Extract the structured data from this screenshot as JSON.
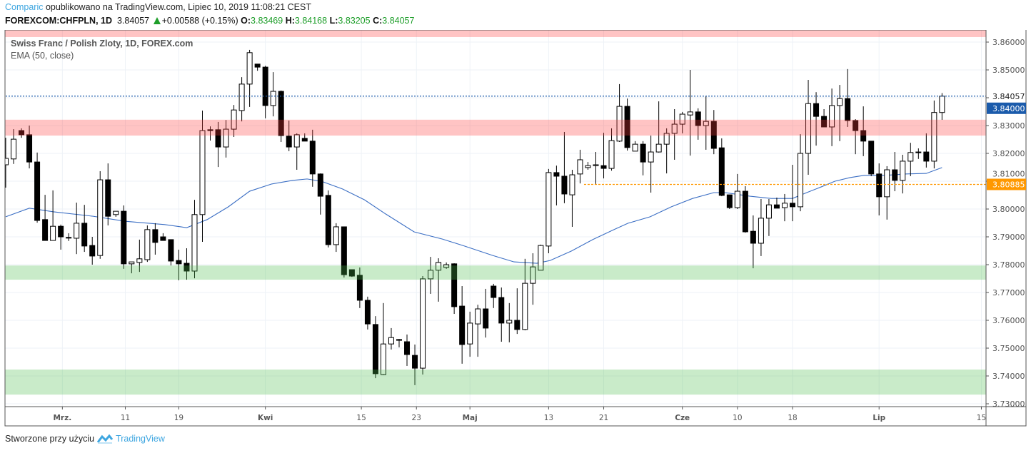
{
  "header": {
    "author": "Comparic",
    "published": "opublikowano na TradingView.com, Lipiec 10, 2019 11:08:21 CEST",
    "symbol": "FOREXCOM:CHFPLN, 1D",
    "last": "3.84057",
    "change": "+0.00588 (+0.15%)",
    "o_label": "O:",
    "o": "3.83469",
    "h_label": "H:",
    "h": "3.84168",
    "l_label": "L:",
    "l": "3.83205",
    "c_label": "C:",
    "c": "3.84057"
  },
  "legend": {
    "title": "Swiss Franc / Polish Zloty, 1D, FOREX.com",
    "indicator": "EMA (50, close)"
  },
  "footer": {
    "text": "Stworzone przy użyciu",
    "brand": "TradingView"
  },
  "colors": {
    "ema": "#3c6fc4",
    "resistance": "#ff8a8a",
    "support": "#8fd68f",
    "last_line": "#1b5bab",
    "orange_line": "#ff9800",
    "up_text": "#1e9e2a"
  },
  "chart_data": {
    "type": "candlestick",
    "title": "Swiss Franc / Polish Zloty, 1D, FOREX.com",
    "ylim": [
      3.73,
      3.8645
    ],
    "y_ticks": [
      "3.86000",
      "3.85000",
      "3.84000",
      "3.83000",
      "3.82000",
      "3.81000",
      "3.80000",
      "3.79000",
      "3.78000",
      "3.77000",
      "3.76000",
      "3.75000",
      "3.74000",
      "3.73000"
    ],
    "x_ticks": [
      {
        "bar": 7.2,
        "label": "Mrz.",
        "bold": true
      },
      {
        "bar": 15.2,
        "label": "11"
      },
      {
        "bar": 22,
        "label": "19"
      },
      {
        "bar": 33,
        "label": "Kwi",
        "bold": true
      },
      {
        "bar": 45.2,
        "label": "15"
      },
      {
        "bar": 52.2,
        "label": "23"
      },
      {
        "bar": 59,
        "label": "Maj",
        "bold": true
      },
      {
        "bar": 69,
        "label": "13"
      },
      {
        "bar": 76,
        "label": "21"
      },
      {
        "bar": 86,
        "label": "Cze",
        "bold": true
      },
      {
        "bar": 93,
        "label": "10"
      },
      {
        "bar": 100,
        "label": "18"
      },
      {
        "bar": 111,
        "label": "Lip",
        "bold": true
      },
      {
        "bar": 124,
        "label": "15"
      }
    ],
    "ohlc": [
      [
        3.8159,
        3.8256,
        3.8077,
        3.8182
      ],
      [
        3.818,
        3.8287,
        3.8162,
        3.8251
      ],
      [
        3.8282,
        3.829,
        3.8256,
        3.8267
      ],
      [
        3.8267,
        3.83,
        3.8146,
        3.8169
      ],
      [
        3.8169,
        3.8203,
        3.7951,
        3.7959
      ],
      [
        3.7962,
        3.8051,
        3.7887,
        3.7887
      ],
      [
        3.7887,
        3.8067,
        3.7887,
        3.7938
      ],
      [
        3.7938,
        3.7944,
        3.7854,
        3.79
      ],
      [
        3.7897,
        3.7913,
        3.7885,
        3.7898
      ],
      [
        3.7895,
        3.8023,
        3.7838,
        3.7949
      ],
      [
        3.7949,
        3.8015,
        3.7846,
        3.7867
      ],
      [
        3.7869,
        3.79,
        3.78,
        3.7831
      ],
      [
        3.7833,
        3.8136,
        3.7821,
        3.8105
      ],
      [
        3.8105,
        3.8164,
        3.7941,
        3.7974
      ],
      [
        3.798,
        3.7992,
        3.7972,
        3.7992
      ],
      [
        3.7992,
        3.8013,
        3.7785,
        3.7803
      ],
      [
        3.7803,
        3.781,
        3.7769,
        3.781
      ],
      [
        3.7808,
        3.789,
        3.7774,
        3.7821
      ],
      [
        3.7818,
        3.7941,
        3.781,
        3.7926
      ],
      [
        3.7926,
        3.7949,
        3.7836,
        3.788
      ],
      [
        3.79,
        3.7913,
        3.7887,
        3.7887
      ],
      [
        3.789,
        3.789,
        3.7797,
        3.7813
      ],
      [
        3.7815,
        3.7854,
        3.7744,
        3.7803
      ],
      [
        3.7805,
        3.7859,
        3.7746,
        3.7777
      ],
      [
        3.7777,
        3.8033,
        3.7751,
        3.798
      ],
      [
        3.798,
        3.8354,
        3.7882,
        3.8282
      ],
      [
        3.8285,
        3.8297,
        3.8246,
        3.8282
      ],
      [
        3.8285,
        3.8313,
        3.8151,
        3.8223
      ],
      [
        3.8223,
        3.832,
        3.8185,
        3.8287
      ],
      [
        3.8287,
        3.8374,
        3.8259,
        3.8356
      ],
      [
        3.8354,
        3.8474,
        3.8315,
        3.8449
      ],
      [
        3.8449,
        3.8572,
        3.8367,
        3.8562
      ],
      [
        3.8521,
        3.8521,
        3.8497,
        3.851
      ],
      [
        3.851,
        3.8515,
        3.8326,
        3.8372
      ],
      [
        3.8372,
        3.8492,
        3.8333,
        3.8423
      ],
      [
        3.8423,
        3.8426,
        3.8241,
        3.8264
      ],
      [
        3.8262,
        3.8318,
        3.8208,
        3.8223
      ],
      [
        3.8223,
        3.8272,
        3.8141,
        3.8267
      ],
      [
        3.8254,
        3.8272,
        3.8244,
        3.8244
      ],
      [
        3.8244,
        3.8285,
        3.808,
        3.8126
      ],
      [
        3.8126,
        3.8128,
        3.798,
        3.8046
      ],
      [
        3.8049,
        3.8067,
        3.7862,
        3.7872
      ],
      [
        3.7872,
        3.7949,
        3.7846,
        3.7936
      ],
      [
        3.7936,
        3.7936,
        3.7754,
        3.7764
      ],
      [
        3.7782,
        3.7782,
        3.7756,
        3.7759
      ],
      [
        3.7762,
        3.779,
        3.7644,
        3.7672
      ],
      [
        3.7672,
        3.7685,
        3.7567,
        3.7587
      ],
      [
        3.7585,
        3.7615,
        3.7392,
        3.7408
      ],
      [
        3.7405,
        3.7662,
        3.7403,
        3.7515
      ],
      [
        3.7515,
        3.7572,
        3.7495,
        3.7538
      ],
      [
        3.7531,
        3.7533,
        3.7503,
        3.7528
      ],
      [
        3.7523,
        3.7549,
        3.7436,
        3.7477
      ],
      [
        3.7474,
        3.7513,
        3.7367,
        3.7428
      ],
      [
        3.7428,
        3.7759,
        3.7405,
        3.7749
      ],
      [
        3.7749,
        3.7828,
        3.7695,
        3.778
      ],
      [
        3.778,
        3.7823,
        3.7667,
        3.7808
      ],
      [
        3.779,
        3.7808,
        3.7785,
        3.78
      ],
      [
        3.7803,
        3.7805,
        3.7623,
        3.7649
      ],
      [
        3.7651,
        3.7723,
        3.7444,
        3.7513
      ],
      [
        3.7515,
        3.7631,
        3.7469,
        3.759
      ],
      [
        3.7587,
        3.7656,
        3.7469,
        3.7641
      ],
      [
        3.7641,
        3.7713,
        3.7538,
        3.7572
      ],
      [
        3.7723,
        3.7731,
        3.7644,
        3.7682
      ],
      [
        3.7682,
        3.7718,
        3.7523,
        3.759
      ],
      [
        3.759,
        3.7662,
        3.7521,
        3.76
      ],
      [
        3.76,
        3.7715,
        3.7551,
        3.7567
      ],
      [
        3.7567,
        3.7821,
        3.7564,
        3.7733
      ],
      [
        3.7733,
        3.7841,
        3.7656,
        3.7792
      ],
      [
        3.778,
        3.7872,
        3.778,
        3.7869
      ],
      [
        3.7867,
        3.8144,
        3.7841,
        3.8131
      ],
      [
        3.8131,
        3.8156,
        3.8013,
        3.8118
      ],
      [
        3.8118,
        3.8277,
        3.8021,
        3.8054
      ],
      [
        3.8051,
        3.8141,
        3.7936,
        3.8123
      ],
      [
        3.8126,
        3.8213,
        3.8092,
        3.8177
      ],
      [
        3.8149,
        3.8169,
        3.8141,
        3.8156
      ],
      [
        3.8156,
        3.8205,
        3.809,
        3.8159
      ],
      [
        3.8156,
        3.8274,
        3.811,
        3.8146
      ],
      [
        3.8146,
        3.829,
        3.8138,
        3.8246
      ],
      [
        3.8244,
        3.8449,
        3.8241,
        3.8369
      ],
      [
        3.8369,
        3.8397,
        3.821,
        3.8221
      ],
      [
        3.8208,
        3.8244,
        3.8208,
        3.8233
      ],
      [
        3.8233,
        3.8244,
        3.8121,
        3.8169
      ],
      [
        3.8169,
        3.8264,
        3.8059,
        3.8205
      ],
      [
        3.8205,
        3.8387,
        3.8203,
        3.8233
      ],
      [
        3.8233,
        3.829,
        3.8128,
        3.8272
      ],
      [
        3.8272,
        3.8359,
        3.8177,
        3.8305
      ],
      [
        3.8305,
        3.8349,
        3.8272,
        3.8341
      ],
      [
        3.8338,
        3.85,
        3.8192,
        3.8349
      ],
      [
        3.8349,
        3.8362,
        3.8249,
        3.83
      ],
      [
        3.83,
        3.8405,
        3.8213,
        3.8315
      ],
      [
        3.8315,
        3.8356,
        3.8197,
        3.8218
      ],
      [
        3.822,
        3.8254,
        3.8046,
        3.8049
      ],
      [
        3.8051,
        3.8051,
        3.8,
        3.8005
      ],
      [
        3.8005,
        3.8126,
        3.8,
        3.8064
      ],
      [
        3.8064,
        3.8082,
        3.7915,
        3.7918
      ],
      [
        3.792,
        3.7977,
        3.7787,
        3.7877
      ],
      [
        3.7877,
        3.8036,
        3.7831,
        3.7967
      ],
      [
        3.7967,
        3.8036,
        3.7903,
        3.8015
      ],
      [
        3.8015,
        3.8041,
        3.8003,
        3.8003
      ],
      [
        3.8005,
        3.8054,
        3.7956,
        3.8021
      ],
      [
        3.8021,
        3.8159,
        3.7956,
        3.8008
      ],
      [
        3.8008,
        3.8269,
        3.7992,
        3.82
      ],
      [
        3.82,
        3.8464,
        3.8123,
        3.8379
      ],
      [
        3.8379,
        3.842,
        3.8228,
        3.8333
      ],
      [
        3.8333,
        3.8359,
        3.8295,
        3.8295
      ],
      [
        3.8295,
        3.8433,
        3.8226,
        3.8372
      ],
      [
        3.8372,
        3.8446,
        3.8244,
        3.8397
      ],
      [
        3.8397,
        3.8503,
        3.8295,
        3.8318
      ],
      [
        3.8318,
        3.8323,
        3.8197,
        3.8282
      ],
      [
        3.8282,
        3.8369,
        3.819,
        3.8244
      ],
      [
        3.8244,
        3.8244,
        3.8118,
        3.8126
      ],
      [
        3.8126,
        3.8164,
        3.7977,
        3.8044
      ],
      [
        3.8044,
        3.8154,
        3.7962,
        3.8141
      ],
      [
        3.8141,
        3.8205,
        3.8064,
        3.8103
      ],
      [
        3.8103,
        3.8195,
        3.8056,
        3.8172
      ],
      [
        3.8172,
        3.8238,
        3.8118,
        3.8203
      ],
      [
        3.8205,
        3.8218,
        3.818,
        3.8204
      ],
      [
        3.8205,
        3.8272,
        3.8149,
        3.8172
      ],
      [
        3.8172,
        3.839,
        3.8146,
        3.8347
      ],
      [
        3.83469,
        3.84168,
        3.83205,
        3.84057
      ]
    ],
    "ema50": [
      [
        0,
        3.7972
      ],
      [
        3,
        3.8003
      ],
      [
        6.1,
        3.799
      ],
      [
        11.1,
        3.7974
      ],
      [
        15.2,
        3.7956
      ],
      [
        20.2,
        3.7944
      ],
      [
        23,
        3.7933
      ],
      [
        25.6,
        3.7962
      ],
      [
        28.3,
        3.8008
      ],
      [
        31,
        3.8064
      ],
      [
        33.8,
        3.809
      ],
      [
        36.5,
        3.8103
      ],
      [
        38.3,
        3.8108
      ],
      [
        40.1,
        3.81
      ],
      [
        42.8,
        3.8072
      ],
      [
        45.6,
        3.8033
      ],
      [
        48.3,
        3.7982
      ],
      [
        51.9,
        3.7918
      ],
      [
        55.5,
        3.7892
      ],
      [
        58.3,
        3.7867
      ],
      [
        61.9,
        3.7833
      ],
      [
        64.6,
        3.781
      ],
      [
        67.5,
        3.7805
      ],
      [
        69.2,
        3.7815
      ],
      [
        71.9,
        3.7849
      ],
      [
        74.6,
        3.789
      ],
      [
        77.3,
        3.7926
      ],
      [
        79.1,
        3.7949
      ],
      [
        81.9,
        3.7972
      ],
      [
        84.6,
        3.8008
      ],
      [
        87.3,
        3.8038
      ],
      [
        90,
        3.8059
      ],
      [
        91.4,
        3.8059
      ],
      [
        94.6,
        3.8046
      ],
      [
        97.3,
        3.8038
      ],
      [
        100,
        3.8038
      ],
      [
        101.8,
        3.8059
      ],
      [
        103.6,
        3.8079
      ],
      [
        105.4,
        3.81
      ],
      [
        107.3,
        3.8113
      ],
      [
        109.1,
        3.8121
      ],
      [
        111.8,
        3.8121
      ],
      [
        114.5,
        3.8126
      ],
      [
        117,
        3.8128
      ],
      [
        119,
        3.8149
      ]
    ],
    "zones": [
      {
        "type": "resistance",
        "from": 3.8618,
        "to": 3.865
      },
      {
        "type": "resistance",
        "from": 3.8264,
        "to": 3.8321
      },
      {
        "type": "support",
        "from": 3.7746,
        "to": 3.7797
      },
      {
        "type": "support",
        "from": 3.7333,
        "to": 3.7423
      }
    ],
    "lines": [
      {
        "name": "last-price-line",
        "value": 3.84057,
        "label": "3.84057",
        "from_bar": 0,
        "style": "blue-dotted"
      },
      {
        "name": "orange-level-line",
        "value": 3.80885,
        "label": "3.80885",
        "from_bar": 73.5,
        "style": "orange-dashed"
      }
    ],
    "axis_badges": [
      {
        "value": 3.84,
        "label": "3.84000",
        "color": "#1b5bab"
      },
      {
        "value": 3.80885,
        "label": "3.80885",
        "color": "#ff9800"
      }
    ]
  }
}
